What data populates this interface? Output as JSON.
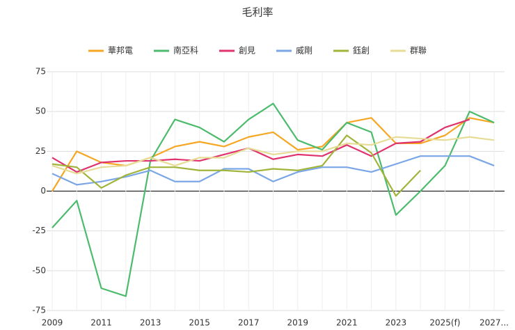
{
  "chart_data": {
    "type": "line",
    "title": "毛利率",
    "categories": [
      "2009",
      null,
      "2011",
      null,
      "2013",
      null,
      "2015",
      null,
      "2017",
      null,
      "2019",
      null,
      "2021",
      null,
      "2023",
      null,
      "2025(f)",
      null,
      "2027..."
    ],
    "series": [
      {
        "name": "華邦電",
        "color": "#f5a623",
        "values": [
          0,
          25,
          18,
          16,
          21,
          28,
          31,
          28,
          34,
          37,
          26,
          28,
          43,
          46,
          30,
          30,
          35,
          46,
          43
        ]
      },
      {
        "name": "南亞科",
        "color": "#4cbb6c",
        "values": [
          -23,
          -6,
          -61,
          -66,
          19,
          45,
          40,
          31,
          45,
          55,
          32,
          26,
          43,
          37,
          -15,
          0,
          16,
          50,
          43
        ]
      },
      {
        "name": "創見",
        "color": "#e0336e",
        "values": [
          21,
          12,
          18,
          19,
          19,
          20,
          19,
          23,
          27,
          20,
          23,
          22,
          29,
          22,
          30,
          31,
          40,
          45,
          null
        ]
      },
      {
        "name": "威剛",
        "color": "#7aa6e6",
        "values": [
          11,
          4,
          6,
          9,
          13,
          6,
          6,
          14,
          14,
          6,
          12,
          15,
          15,
          12,
          17,
          22,
          22,
          22,
          16
        ]
      },
      {
        "name": "鈺創",
        "color": "#a0b43a",
        "values": [
          17,
          15,
          2,
          10,
          15,
          15,
          13,
          13,
          12,
          14,
          13,
          16,
          35,
          24,
          -3,
          13,
          null,
          null,
          null
        ]
      },
      {
        "name": "群聯",
        "color": "#e6dc96",
        "values": [
          16,
          11,
          15,
          16,
          21,
          16,
          21,
          21,
          27,
          23,
          25,
          25,
          30,
          29,
          34,
          33,
          32,
          34,
          32
        ]
      }
    ],
    "ylim": [
      -75,
      75
    ],
    "yticks": [
      -75,
      -50,
      -25,
      0,
      25,
      50,
      75
    ],
    "grid": true,
    "legend": "top"
  }
}
